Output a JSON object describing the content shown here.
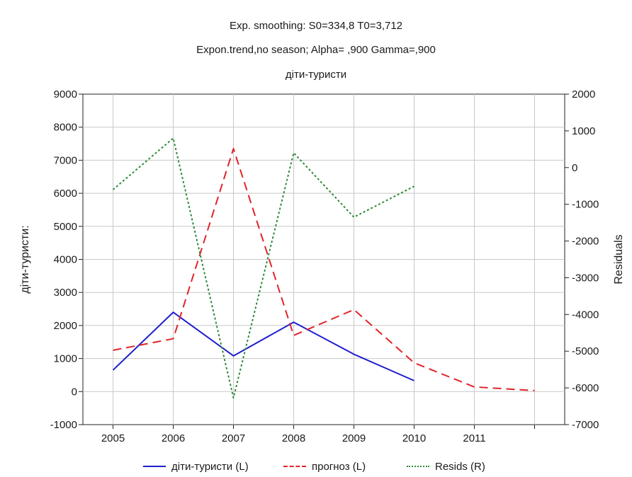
{
  "chart_data": {
    "type": "line",
    "title": "Exp. smoothing:  S0=334,8 T0=3,712",
    "subtitle": "Expon.trend,no season; Alpha=  ,900 Gamma=,900",
    "series_title": "діти-туристи",
    "ylabel": "діти-туристи:",
    "ylabel_right": "Residuals",
    "x_categories": [
      "2005",
      "2006",
      "2007",
      "2008",
      "2009",
      "2010",
      "2011",
      ""
    ],
    "ylim_left": [
      -1000,
      9000
    ],
    "yticks_left": [
      -1000,
      0,
      1000,
      2000,
      3000,
      4000,
      5000,
      6000,
      7000,
      8000,
      9000
    ],
    "ylim_right": [
      -7000,
      2000
    ],
    "yticks_right": [
      -7000,
      -6000,
      -5000,
      -4000,
      -3000,
      -2000,
      -1000,
      0,
      1000,
      2000
    ],
    "grid": true,
    "legend_position": "bottom",
    "series": [
      {
        "name": "діти-туристи (L)",
        "axis": "left",
        "color": "#1f1fcf",
        "style": "solid",
        "values": [
          650,
          2400,
          1080,
          2100,
          1130,
          330,
          null,
          null
        ]
      },
      {
        "name": "прогноз (L)",
        "axis": "left",
        "color": "#e0242a",
        "style": "dashed",
        "values": [
          1250,
          1600,
          7350,
          1700,
          2480,
          870,
          140,
          30
        ]
      },
      {
        "name": "Resids (R)",
        "axis": "right",
        "color": "#2e8b3a",
        "style": "dotted",
        "values": [
          -600,
          800,
          -6270,
          400,
          -1350,
          -510,
          null,
          null
        ]
      }
    ]
  }
}
